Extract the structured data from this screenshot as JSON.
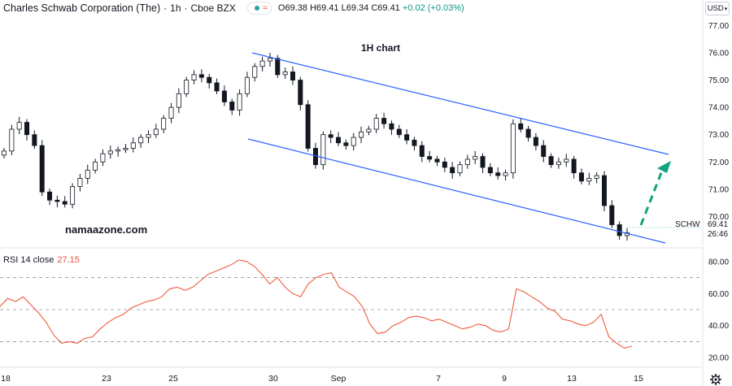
{
  "header": {
    "symbol": "Charles Schwab Corporation (The)",
    "sep1": "·",
    "interval": "1h",
    "sep2": "·",
    "exchange": "Cboe BZX",
    "wave_glyph": "≈",
    "ohlc": {
      "o": "O69.38",
      "h": "H69.41",
      "l": "L69.34",
      "c": "C69.41",
      "chg": "+0.02 (+0.03%)"
    }
  },
  "currency": {
    "label": "USD",
    "arrow": "▾"
  },
  "annotation_title": "1H  chart",
  "watermark": "namaazone.com",
  "ticker_label": "SCHW",
  "last_price": {
    "value": "69.41",
    "countdown": "26:46"
  },
  "rsi": {
    "label": "RSI 14 close",
    "value": "27.15"
  },
  "colors": {
    "channel": "#2962ff",
    "arrow": "#10a37f",
    "candle_up_fill": "#ffffff",
    "candle_down_fill": "#131722",
    "rsi_line": "#f05a3c",
    "rsi_levels": "#787b86"
  },
  "chart_data": [
    {
      "type": "candlestick",
      "title": "",
      "y_axis": {
        "position": "right",
        "ylim": [
          69.0,
          77.4
        ],
        "ticks": [
          "77.00",
          "76.00",
          "75.00",
          "74.00",
          "73.00",
          "72.00",
          "71.00",
          "70.00"
        ]
      },
      "x_axis": {
        "ticks": [
          "18",
          "23",
          "25",
          "30",
          "Sep",
          "7",
          "9",
          "13",
          "15"
        ]
      },
      "grid": false,
      "series_close": [
        72.4,
        73.2,
        73.45,
        73.0,
        72.6,
        70.9,
        70.6,
        70.55,
        70.45,
        71.1,
        71.4,
        71.7,
        72.0,
        72.3,
        72.4,
        72.45,
        72.5,
        72.7,
        72.9,
        73.0,
        73.2,
        73.6,
        74.0,
        74.5,
        75.0,
        75.2,
        75.1,
        74.9,
        74.6,
        74.2,
        73.9,
        74.5,
        75.1,
        75.5,
        75.7,
        75.8,
        75.2,
        75.3,
        75.0,
        74.1,
        72.5,
        71.9,
        73.0,
        72.9,
        72.7,
        72.6,
        72.9,
        73.1,
        73.2,
        73.6,
        73.4,
        73.2,
        73.0,
        72.8,
        72.6,
        72.2,
        72.1,
        72.0,
        71.8,
        71.6,
        71.9,
        72.1,
        72.2,
        71.8,
        71.6,
        71.5,
        71.6,
        73.4,
        73.2,
        72.9,
        72.6,
        72.2,
        71.9,
        72.0,
        72.1,
        71.6,
        71.3,
        71.4,
        71.5,
        70.4,
        69.7,
        69.3,
        69.41
      ]
    },
    {
      "type": "line",
      "title": "RSI 14 close",
      "y_axis": {
        "position": "right",
        "ylim": [
          14,
          86
        ],
        "ticks": [
          "80.00",
          "60.00",
          "40.00",
          "20.00"
        ]
      },
      "levels": [
        70,
        50,
        30
      ],
      "series": [
        {
          "name": "RSI 14 close",
          "values": [
            52,
            57,
            55,
            58,
            53,
            48,
            42,
            34,
            29,
            30,
            29,
            32,
            33,
            38,
            42,
            45,
            47,
            51,
            53,
            55,
            56,
            58,
            63,
            64,
            62,
            64,
            68,
            72,
            74,
            76,
            78,
            81,
            80,
            77,
            72,
            66,
            70,
            64,
            60,
            58,
            66,
            70,
            72,
            73,
            64,
            61,
            58,
            52,
            41,
            35,
            36,
            40,
            42,
            45,
            46,
            45,
            43,
            44,
            42,
            40,
            38,
            39,
            41,
            40,
            37,
            36,
            38,
            63,
            61,
            58,
            55,
            51,
            49,
            44,
            43,
            41,
            40,
            42,
            47,
            33,
            29,
            26,
            27.15
          ]
        }
      ]
    }
  ]
}
